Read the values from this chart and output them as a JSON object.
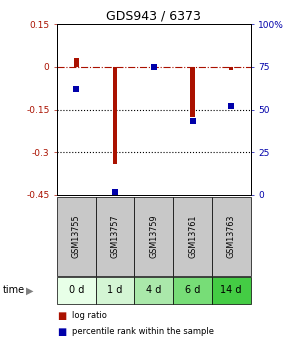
{
  "title": "GDS943 / 6373",
  "samples": [
    "GSM13755",
    "GSM13757",
    "GSM13759",
    "GSM13761",
    "GSM13763"
  ],
  "time_labels": [
    "0 d",
    "1 d",
    "4 d",
    "6 d",
    "14 d"
  ],
  "log_ratio": [
    0.03,
    -0.34,
    -0.005,
    -0.175,
    -0.01
  ],
  "percentile_rank": [
    62,
    2,
    75,
    43,
    52
  ],
  "left_yticks": [
    0.15,
    0.0,
    -0.15,
    -0.3,
    -0.45
  ],
  "left_ytick_labels": [
    "0.15",
    "0",
    "-0.15",
    "-0.3",
    "-0.45"
  ],
  "right_ytick_labels": [
    "100%",
    "75",
    "50",
    "25",
    "0"
  ],
  "red_color": "#aa1100",
  "blue_color": "#0000aa",
  "bar_width": 0.12,
  "sample_bg": "#c8c8c8",
  "time_bg_colors": [
    "#e8ffe8",
    "#d4f5d4",
    "#aae8aa",
    "#77dd77",
    "#44cc44"
  ],
  "legend_red_label": "log ratio",
  "legend_blue_label": "percentile rank within the sample"
}
